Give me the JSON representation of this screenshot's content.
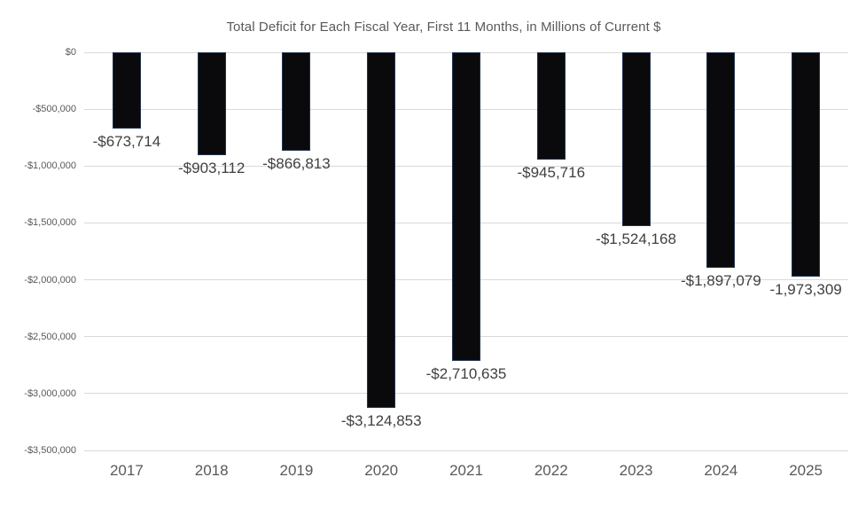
{
  "chart_data": {
    "type": "bar",
    "title": "Total Deficit for Each Fiscal Year, First 11 Months, in Millions of Current $",
    "categories": [
      "2017",
      "2018",
      "2019",
      "2020",
      "2021",
      "2022",
      "2023",
      "2024",
      "2025"
    ],
    "values": [
      -673714,
      -903112,
      -866813,
      -3124853,
      -2710635,
      -945716,
      -1524168,
      -1897079,
      -1973309
    ],
    "data_labels": [
      "-$673,714",
      "-$903,112",
      "-$866,813",
      "-$3,124,853",
      "-$2,710,635",
      "-$945,716",
      "-$1,524,168",
      "-$1,897,079",
      "-1,973,309"
    ],
    "xlabel": "",
    "ylabel": "",
    "ylim": [
      -3500000,
      0
    ],
    "y_ticks": [
      {
        "value": 0,
        "label": "$0"
      },
      {
        "value": -500000,
        "label": "-$500,000"
      },
      {
        "value": -1000000,
        "label": "-$1,000,000"
      },
      {
        "value": -1500000,
        "label": "-$1,500,000"
      },
      {
        "value": -2000000,
        "label": "-$2,000,000"
      },
      {
        "value": -2500000,
        "label": "-$2,500,000"
      },
      {
        "value": -3000000,
        "label": "-$3,000,000"
      },
      {
        "value": -3500000,
        "label": "-$3,500,000"
      }
    ],
    "grid": true,
    "legend": "none",
    "colors": {
      "bar_fill": "#0a0a0d",
      "bar_border": "#22334f",
      "gridline": "#d9d9d9",
      "title_text": "#595959",
      "axis_text": "#595959",
      "data_label_text": "#404040",
      "background": "#ffffff"
    }
  }
}
